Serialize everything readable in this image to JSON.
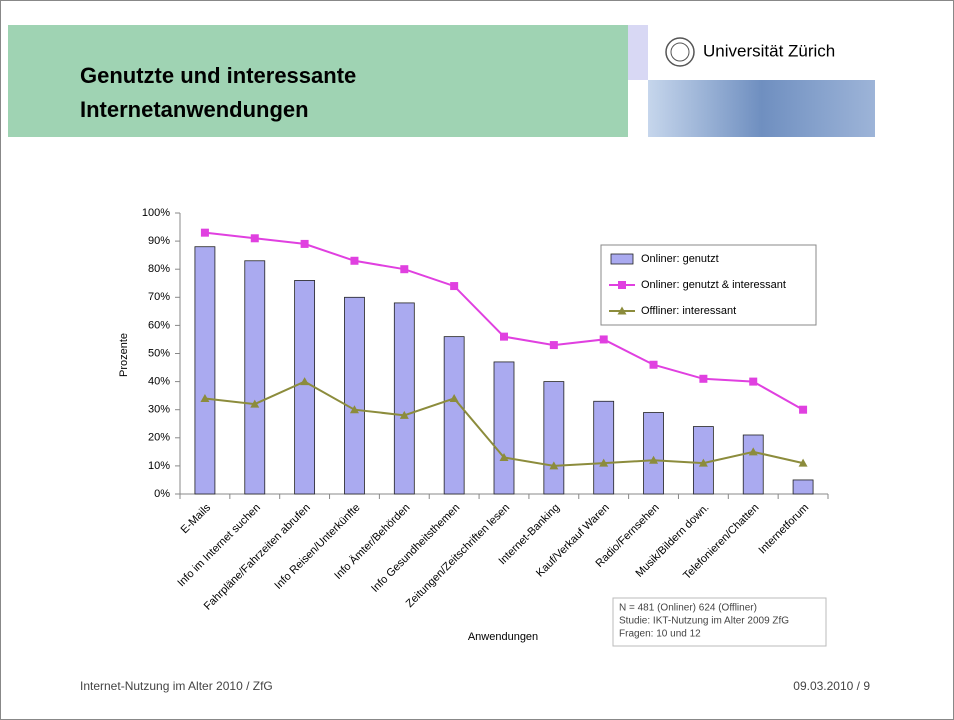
{
  "slide": {
    "title": [
      "Genutzte und interessante",
      "Internetanwendungen"
    ],
    "university": "Universität Zürich",
    "footer_left": "Internet-Nutzung im Alter 2010 / ZfG",
    "footer_right": "09.03.2010  /  9"
  },
  "chart_data": {
    "type": "bar",
    "categories": [
      "E-Mails",
      "Info im Internet suchen",
      "Fahrpläne/Fahrzeiten abrufen",
      "Info Reisen/Unterkünfte",
      "Info Ämter/Behörden",
      "Info Gesundheitsthemen",
      "Zeitungen/Zeitschriften lesen",
      "Internet-Banking",
      "Kauf/Verkauf Waren",
      "Radio/Fernsehen",
      "Musik/Bildern down.",
      "Telefonieren/Chatten",
      "Internetforum"
    ],
    "series": [
      {
        "name": "Onliner: genutzt",
        "type": "bar",
        "color": "#aaaaf0",
        "values": [
          88,
          83,
          76,
          70,
          68,
          56,
          47,
          40,
          33,
          29,
          24,
          21,
          5
        ]
      },
      {
        "name": "Onliner: genutzt & interessant",
        "type": "line",
        "marker": "square",
        "color": "#e040e0",
        "values": [
          93,
          91,
          89,
          83,
          80,
          74,
          56,
          53,
          55,
          46,
          41,
          40,
          30
        ]
      },
      {
        "name": "Offliner: interessant",
        "type": "line",
        "marker": "triangle",
        "color": "#8c8c3c",
        "values": [
          34,
          32,
          40,
          30,
          28,
          34,
          13,
          10,
          11,
          12,
          11,
          15,
          11
        ]
      }
    ],
    "ylabel": "Prozente",
    "xlabel": "Anwendungen",
    "ylim": [
      0,
      100
    ],
    "yticks": [
      {
        "value": 0,
        "label": "0%"
      },
      {
        "value": 10,
        "label": "10%"
      },
      {
        "value": 20,
        "label": "20%"
      },
      {
        "value": 30,
        "label": "30%"
      },
      {
        "value": 40,
        "label": "40%"
      },
      {
        "value": 50,
        "label": "50%"
      },
      {
        "value": 60,
        "label": "60%"
      },
      {
        "value": 70,
        "label": "70%"
      },
      {
        "value": 80,
        "label": "80%"
      },
      {
        "value": 90,
        "label": "90%"
      },
      {
        "value": 100,
        "label": "100%"
      }
    ],
    "grid": false,
    "legend": "upper right",
    "note": [
      "N = 481 (Onliner) 624 (Offliner)",
      "Studie: IKT-Nutzung im Alter 2009 ZfG",
      "Fragen: 10 und 12"
    ]
  }
}
